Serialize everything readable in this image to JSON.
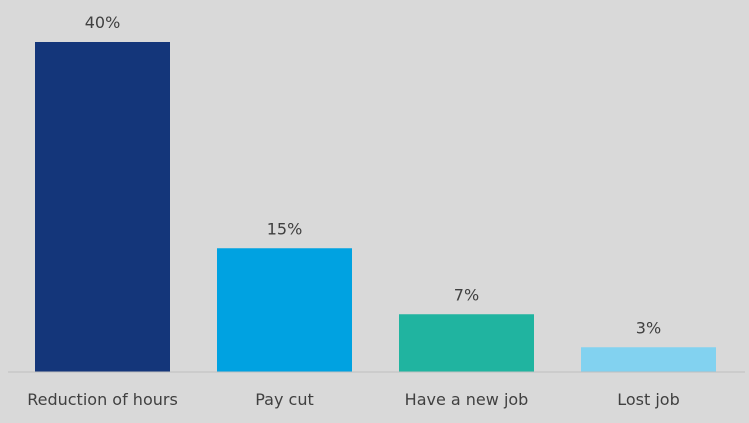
{
  "chart_data": {
    "type": "bar",
    "categories": [
      "Reduction of hours",
      "Pay cut",
      "Have a new job",
      "Lost job"
    ],
    "values": [
      40,
      15,
      7,
      3
    ],
    "data_labels": [
      "40%",
      "15%",
      "7%",
      "3%"
    ],
    "colors": [
      "#14367a",
      "#00a2e1",
      "#20b4a0",
      "#82d2f0"
    ],
    "title": "",
    "xlabel": "",
    "ylabel": "",
    "ylim": [
      0,
      40
    ],
    "grid": false,
    "legend": "none"
  }
}
